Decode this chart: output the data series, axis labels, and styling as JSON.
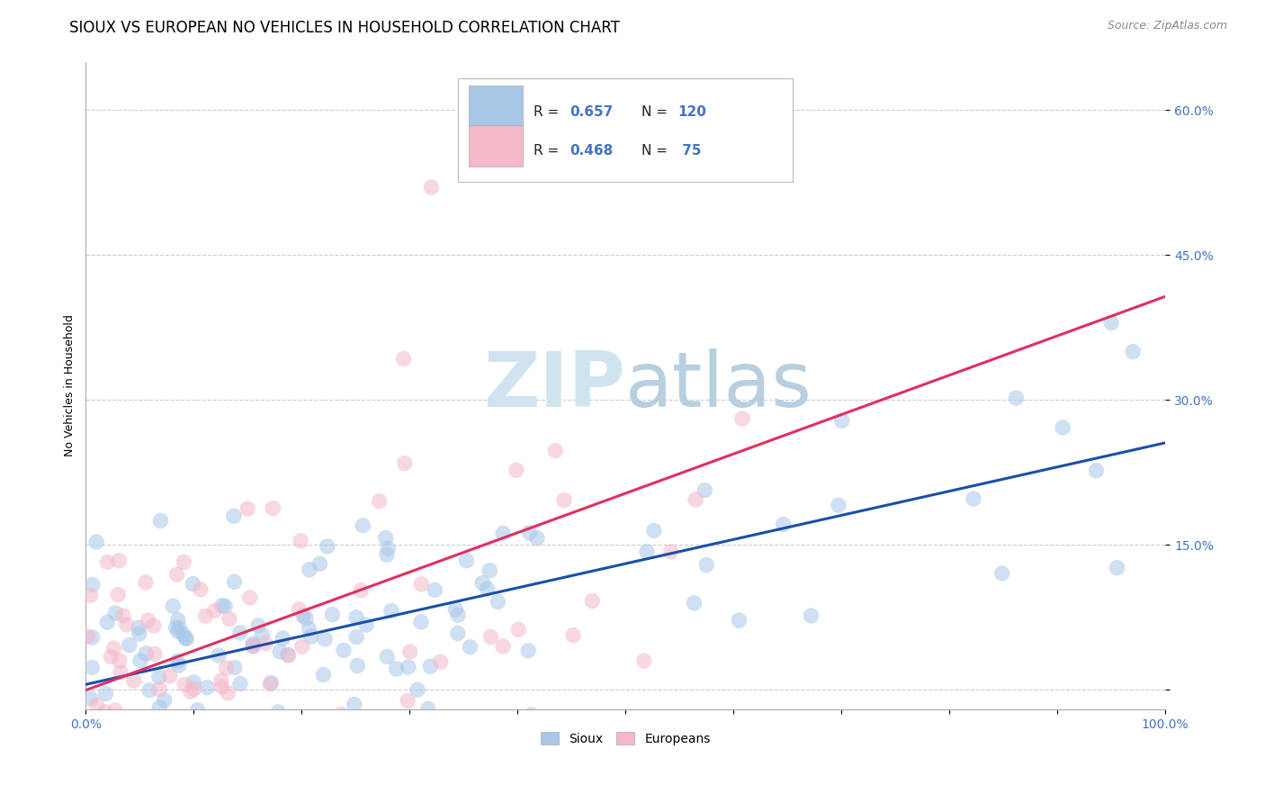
{
  "title": "SIOUX VS EUROPEAN NO VEHICLES IN HOUSEHOLD CORRELATION CHART",
  "source_text": "Source: ZipAtlas.com",
  "ylabel": "No Vehicles in Household",
  "xlim": [
    0.0,
    1.0
  ],
  "ylim": [
    -0.02,
    0.65
  ],
  "x_tick_positions": [
    0.0,
    0.1,
    0.2,
    0.3,
    0.4,
    0.5,
    0.6,
    0.7,
    0.8,
    0.9,
    1.0
  ],
  "x_tick_labels": [
    "0.0%",
    "",
    "",
    "",
    "",
    "",
    "",
    "",
    "",
    "",
    "100.0%"
  ],
  "y_tick_positions": [
    0.0,
    0.15,
    0.3,
    0.45,
    0.6
  ],
  "y_tick_labels": [
    "",
    "15.0%",
    "30.0%",
    "45.0%",
    "60.0%"
  ],
  "sioux_color": "#a8c8e8",
  "europeans_color": "#f4b8c8",
  "sioux_line_color": "#1a4faa",
  "europeans_line_color": "#e03060",
  "background_color": "#ffffff",
  "grid_color": "#cccccc",
  "watermark_color": "#d0e4f0",
  "legend_label_sioux": "Sioux",
  "legend_label_europeans": "Europeans",
  "title_fontsize": 12,
  "axis_label_fontsize": 9,
  "tick_fontsize": 10,
  "tick_color": "#4472c4",
  "sioux_R": "0.657",
  "sioux_N": "120",
  "europeans_R": "0.468",
  "europeans_N": "75",
  "sioux_slope": 0.24,
  "sioux_intercept": 0.01,
  "europeans_slope": 0.31,
  "europeans_intercept": 0.02
}
